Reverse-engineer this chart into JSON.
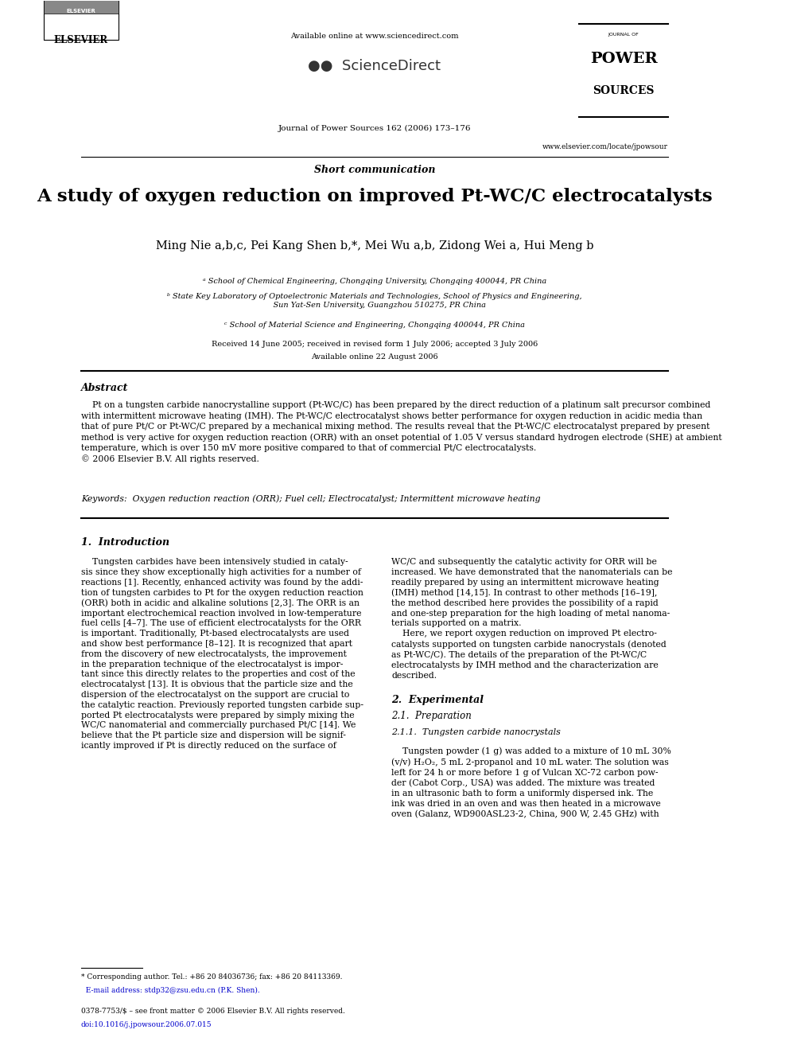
{
  "page_width": 9.92,
  "page_height": 13.23,
  "bg_color": "#ffffff",
  "header": {
    "available_online": "Available online at www.sciencedirect.com",
    "journal_info": "Journal of Power Sources 162 (2006) 173–176",
    "website": "www.elsevier.com/locate/jpowsour",
    "section_label": "Short communication"
  },
  "title": "A study of oxygen reduction on improved Pt-WC/C electrocatalysts",
  "authors": "Ming Nie  , Pei Kang Shen , Mei Wu  , Zidong Wei , Hui Meng ",
  "authors_raw": "Ming Nie a,b,c, Pei Kang Shen b,*, Mei Wu a,b, Zidong Wei a, Hui Meng b",
  "affil_a": "ᵃ School of Chemical Engineering, Chongqing University, Chongqing 400044, PR China",
  "affil_b": "ᵇ State Key Laboratory of Optoelectronic Materials and Technologies, School of Physics and Engineering,\n    Sun Yat-Sen University, Guangzhou 510275, PR China",
  "affil_c": "ᶜ School of Material Science and Engineering, Chongqing 400044, PR China",
  "received": "Received 14 June 2005; received in revised form 1 July 2006; accepted 3 July 2006",
  "available": "Available online 22 August 2006",
  "abstract_title": "Abstract",
  "abstract_text": "    Pt on a tungsten carbide nanocrystalline support (Pt-WC/C) has been prepared by the direct reduction of a platinum salt precursor combined\nwith intermittent microwave heating (IMH). The Pt-WC/C electrocatalyst shows better performance for oxygen reduction in acidic media than\nthat of pure Pt/C or Pt-WC/C prepared by a mechanical mixing method. The results reveal that the Pt-WC/C electrocatalyst prepared by present\nmethod is very active for oxygen reduction reaction (ORR) with an onset potential of 1.05 V versus standard hydrogen electrode (SHE) at ambient\ntemperature, which is over 150 mV more positive compared to that of commercial Pt/C electrocatalysts.\n© 2006 Elsevier B.V. All rights reserved.",
  "keywords": "Keywords:  Oxygen reduction reaction (ORR); Fuel cell; Electrocatalyst; Intermittent microwave heating",
  "section1_title": "1.  Introduction",
  "intro_left": "    Tungsten carbides have been intensively studied in cataly-\nsis since they show exceptionally high activities for a number of\nreactions [1]. Recently, enhanced activity was found by the addi-\ntion of tungsten carbides to Pt for the oxygen reduction reaction\n(ORR) both in acidic and alkaline solutions [2,3]. The ORR is an\nimportant electrochemical reaction involved in low-temperature\nfuel cells [4–7]. The use of efficient electrocatalysts for the ORR\nis important. Traditionally, Pt-based electrocatalysts are used\nand show best performance [8–12]. It is recognized that apart\nfrom the discovery of new electrocatalysts, the improvement\nin the preparation technique of the electrocatalyst is impor-\ntant since this directly relates to the properties and cost of the\nelectrocatalyst [13]. It is obvious that the particle size and the\ndispersion of the electrocatalyst on the support are crucial to\nthe catalytic reaction. Previously reported tungsten carbide sup-\nported Pt electrocatalysts were prepared by simply mixing the\nWC/C nanomaterial and commercially purchased Pt/C [14]. We\nbelieve that the Pt particle size and dispersion will be signif-\nicantly improved if Pt is directly reduced on the surface of",
  "intro_right": "WC/C and subsequently the catalytic activity for ORR will be\nincreased. We have demonstrated that the nanomaterials can be\nreadily prepared by using an intermittent microwave heating\n(IMH) method [14,15]. In contrast to other methods [16–19],\nthe method described here provides the possibility of a rapid\nand one-step preparation for the high loading of metal nanoma-\nterials supported on a matrix.\n    Here, we report oxygen reduction on improved Pt electro-\ncatalysts supported on tungsten carbide nanocrystals (denoted\nas Pt-WC/C). The details of the preparation of the Pt-WC/C\nelectrocatalysts by IMH method and the characterization are\ndescribed.",
  "section2_title": "2.  Experimental",
  "section21_title": "2.1.  Preparation",
  "section211_title": "2.1.1.  Tungsten carbide nanocrystals",
  "section211_text": "    Tungsten powder (1 g) was added to a mixture of 10 mL 30%\n(v/v) H₂O₂, 5 mL 2-propanol and 10 mL water. The solution was\nleft for 24 h or more before 1 g of Vulcan XC-72 carbon pow-\nder (Cabot Corp., USA) was added. The mixture was treated\nin an ultrasonic bath to form a uniformly dispersed ink. The\nink was dried in an oven and was then heated in a microwave\noven (Galanz, WD900ASL23-2, China, 900 W, 2.45 GHz) with",
  "footnote_line": "* Corresponding author. Tel.: +86 20 84036736; fax: +86 20 84113369.",
  "footnote_email": "  E-mail address: stdp32@zsu.edu.cn (P.K. Shen).",
  "footer_issn": "0378-7753/$ – see front matter © 2006 Elsevier B.V. All rights reserved.",
  "footer_doi": "doi:10.1016/j.jpowsour.2006.07.015"
}
